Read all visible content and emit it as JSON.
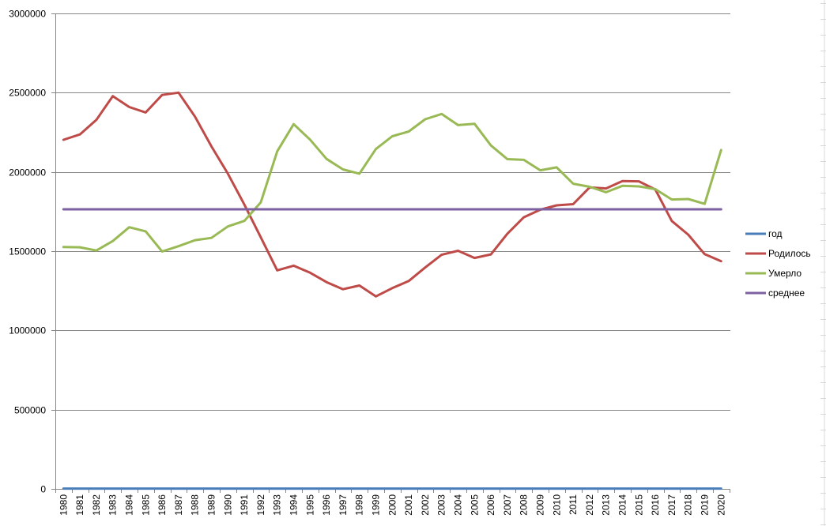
{
  "chart_data": {
    "type": "line",
    "title": "",
    "xlabel": "",
    "ylabel": "",
    "ylim": [
      0,
      3000000
    ],
    "yticks": [
      0,
      500000,
      1000000,
      1500000,
      2000000,
      2500000,
      3000000
    ],
    "grid": true,
    "legend_position": "right",
    "categories": [
      "1980",
      "1981",
      "1982",
      "1983",
      "1984",
      "1985",
      "1986",
      "1987",
      "1988",
      "1989",
      "1990",
      "1991",
      "1992",
      "1993",
      "1994",
      "1995",
      "1996",
      "1997",
      "1998",
      "1999",
      "2000",
      "2001",
      "2002",
      "2003",
      "2004",
      "2005",
      "2006",
      "2007",
      "2008",
      "2009",
      "2010",
      "2011",
      "2012",
      "2013",
      "2014",
      "2015",
      "2016",
      "2017",
      "2018",
      "2019",
      "2020"
    ],
    "series": [
      {
        "name": "год",
        "color": "#4a7ebb",
        "values": [
          1980,
          1981,
          1982,
          1983,
          1984,
          1985,
          1986,
          1987,
          1988,
          1989,
          1990,
          1991,
          1992,
          1993,
          1994,
          1995,
          1996,
          1997,
          1998,
          1999,
          2000,
          2001,
          2002,
          2003,
          2004,
          2005,
          2006,
          2007,
          2008,
          2009,
          2010,
          2011,
          2012,
          2013,
          2014,
          2015,
          2016,
          2017,
          2018,
          2019,
          2020
        ]
      },
      {
        "name": "Родилось",
        "color": "#be4b48",
        "values": [
          2202779,
          2236608,
          2328044,
          2478322,
          2409614,
          2375147,
          2485915,
          2499974,
          2348494,
          2160559,
          1988858,
          1794626,
          1587644,
          1378983,
          1408159,
          1363806,
          1304638,
          1259943,
          1283292,
          1214689,
          1266800,
          1311604,
          1396967,
          1477301,
          1502477,
          1457376,
          1479637,
          1610122,
          1713947,
          1761687,
          1788948,
          1796629,
          1902084,
          1895822,
          1942683,
          1940579,
          1888729,
          1690307,
          1604344,
          1481074,
          1436514
        ]
      },
      {
        "name": "Умерло",
        "color": "#98b954",
        "values": [
          1525755,
          1524286,
          1504200,
          1563995,
          1650866,
          1625266,
          1497975,
          1531585,
          1569112,
          1583743,
          1655993,
          1690657,
          1807441,
          2129339,
          2301366,
          2203811,
          2082249,
          2015779,
          1988744,
          2144316,
          2225332,
          2254856,
          2332272,
          2365826,
          2295402,
          2303935,
          2166703,
          2080445,
          2075954,
          2010543,
          2028516,
          1925720,
          1906335,
          1871809,
          1912347,
          1908541,
          1891015,
          1826125,
          1828910,
          1798307,
          2138586
        ]
      },
      {
        "name": "среднее",
        "color": "#7d60a0",
        "values": [
          1764000,
          1764000,
          1764000,
          1764000,
          1764000,
          1764000,
          1764000,
          1764000,
          1764000,
          1764000,
          1764000,
          1764000,
          1764000,
          1764000,
          1764000,
          1764000,
          1764000,
          1764000,
          1764000,
          1764000,
          1764000,
          1764000,
          1764000,
          1764000,
          1764000,
          1764000,
          1764000,
          1764000,
          1764000,
          1764000,
          1764000,
          1764000,
          1764000,
          1764000,
          1764000,
          1764000,
          1764000,
          1764000,
          1764000,
          1764000,
          1764000
        ]
      }
    ],
    "colors": {
      "grid": "#868686",
      "axis": "#868686",
      "text": "#000000",
      "sheet_grid": "#d8d8d8"
    }
  }
}
